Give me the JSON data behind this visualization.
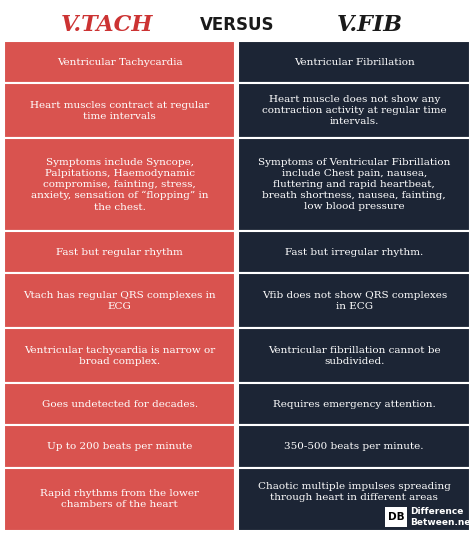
{
  "title_left": "V.TACH",
  "title_middle": "VERSUS",
  "title_right": "V.FIB",
  "title_left_color": "#cc3333",
  "title_middle_color": "#1a1a1a",
  "title_right_color": "#1a1a1a",
  "left_color": "#d9534f",
  "right_color": "#1c2535",
  "text_color": "#ffffff",
  "bg_color": "#ffffff",
  "rows": [
    {
      "left": "Ventricular Tachycardia",
      "right": "Ventricular Fibrillation",
      "header": true
    },
    {
      "left": "Heart muscles contract at regular\ntime intervals",
      "right": "Heart muscle does not show any\ncontraction activity at regular time\nintervals.",
      "header": false
    },
    {
      "left": "Symptoms include Syncope,\nPalpitations, Haemodynamic\ncompromise, fainting, stress,\nanxiety, sensation of “flopping” in\nthe chest.",
      "right": "Symptoms of Ventricular Fibrillation\ninclude Chest pain, nausea,\nfluttering and rapid heartbeat,\nbreath shortness, nausea, fainting,\nlow blood pressure",
      "header": false
    },
    {
      "left": "Fast but regular rhythm",
      "right": "Fast but irregular rhythm.",
      "header": false
    },
    {
      "left": "Vtach has regular QRS complexes in\nECG",
      "right": "Vfib does not show QRS complexes\nin ECG",
      "header": false
    },
    {
      "left": "Ventricular tachycardia is narrow or\nbroad complex.",
      "right": "Ventricular fibrillation cannot be\nsubdivided.",
      "header": false
    },
    {
      "left": "Goes undetected for decades.",
      "right": "Requires emergency attention.",
      "header": false
    },
    {
      "left": "Up to 200 beats per minute",
      "right": "350-500 beats per minute.",
      "header": false
    },
    {
      "left": "Rapid rhythms from the lower\nchambers of the heart",
      "right": "Chaotic multiple impulses spreading\nthrough heart in different areas",
      "header": false
    }
  ],
  "row_heights": [
    1.0,
    1.3,
    2.2,
    1.0,
    1.3,
    1.3,
    1.0,
    1.0,
    1.5
  ],
  "watermark_text": "Difference\nBetween.net",
  "watermark_db": "DB"
}
